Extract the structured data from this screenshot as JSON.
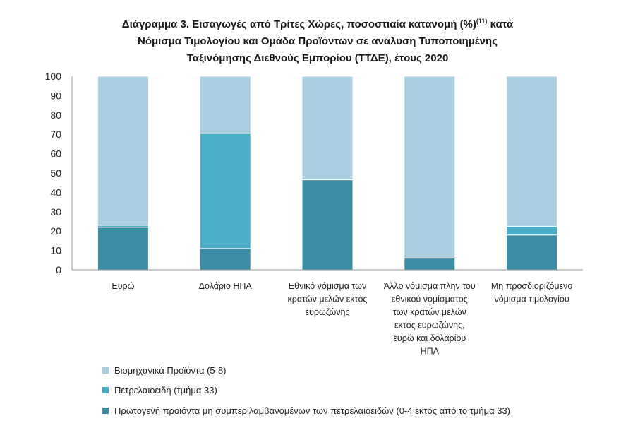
{
  "title": {
    "line1": "Διάγραμμα 3. Εισαγωγές από Τρίτες Χώρες, ποσοστιαία κατανομή (%)",
    "superscript": "(11)",
    "line1_end": " κατά",
    "line2": "Νόμισμα Τιμολογίου και Ομάδα Προϊόντων σε ανάλυση Τυποποιημένης",
    "line3": "Ταξινόμησης Διεθνούς Εμπορίου (ΤΤΔΕ), έτους 2020"
  },
  "colors": {
    "industrial": "#a9cfe0",
    "petroleum": "#4bafc8",
    "primary": "#3c8ca4"
  },
  "chart_data": {
    "type": "bar",
    "stacked": true,
    "ylim": [
      0,
      100
    ],
    "yticks": [
      "0",
      "10",
      "20",
      "30",
      "40",
      "50",
      "60",
      "70",
      "80",
      "90",
      "100"
    ],
    "categories": [
      [
        "Ευρώ"
      ],
      [
        "Δολάριο ΗΠΑ"
      ],
      [
        "Εθνικό νόμισμα των",
        "κρατών μελών εκτός",
        "ευρωζώνης"
      ],
      [
        "Άλλο νόμισμα πλην του",
        "εθνικού νομίσματος",
        "των κρατών μελών",
        "εκτός ευρωζώνης,",
        "ευρώ και δολαρίου",
        "ΗΠΑ"
      ],
      [
        "Μη προσδιοριζόμενο",
        "νόμισμα τιμολογίου"
      ]
    ],
    "series": [
      {
        "name": "Πρωτογενή προϊόντα μη συμπεριλαμβανομένων των πετρελαιοειδών (0-4 εκτός από το τμήμα 33)",
        "key": "primary",
        "values": [
          22,
          11,
          46.5,
          6,
          18
        ]
      },
      {
        "name": "Πετρελαιοειδή (τμήμα 33)",
        "key": "petroleum",
        "values": [
          1,
          59.5,
          0,
          0,
          4.5
        ]
      },
      {
        "name": "Βιομηχανικά Προϊόντα (5-8)",
        "key": "industrial",
        "values": [
          77,
          29.5,
          53.5,
          94,
          77.5
        ]
      }
    ],
    "legend_position": "bottom-left",
    "grid": false
  },
  "legend": [
    {
      "label": "Βιομηχανικά Προϊόντα (5-8)",
      "color": "#a9cfe0"
    },
    {
      "label": "Πετρελαιοειδή (τμήμα 33)",
      "color": "#4bafc8"
    },
    {
      "label": "Πρωτογενή προϊόντα μη συμπεριλαμβανομένων των πετρελαιοειδών (0-4 εκτός από το τμήμα 33)",
      "color": "#3c8ca4"
    }
  ]
}
